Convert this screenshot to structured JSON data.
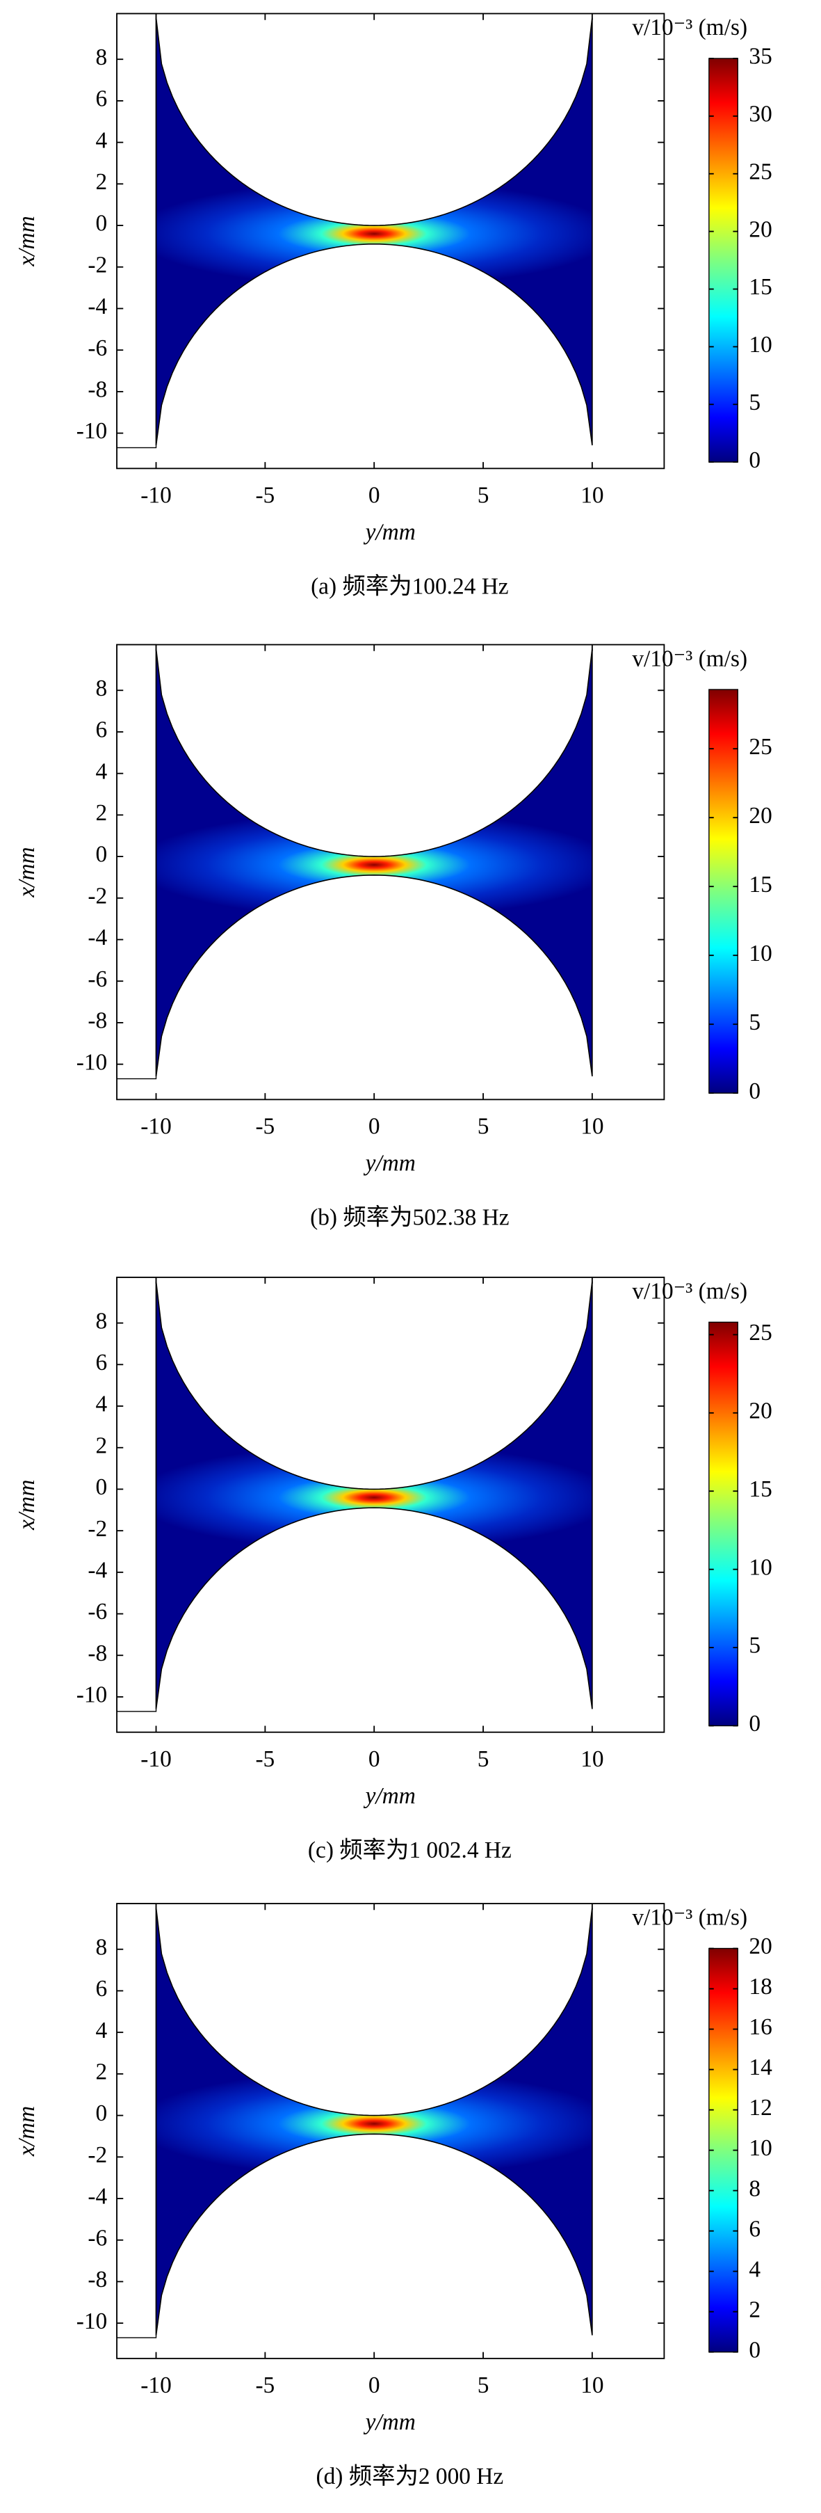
{
  "chart_data": [
    {
      "type": "heatmap",
      "caption": "(a) 频率为100.24 Hz",
      "x_label": "y/mm",
      "y_label": "x/mm",
      "xlim": [
        -11.8,
        13.3
      ],
      "xticks": [
        -10,
        -5,
        0,
        5,
        10
      ],
      "ylim": [
        -11.7,
        10.2
      ],
      "yticks": [
        -10,
        -8,
        -6,
        -4,
        -2,
        0,
        2,
        4,
        6,
        8
      ],
      "colorbar": {
        "label": "v/10⁻³ (m/s)",
        "lim": [
          0,
          35
        ],
        "ticks": [
          0,
          5,
          10,
          15,
          20,
          25,
          30,
          35
        ]
      }
    },
    {
      "type": "heatmap",
      "caption": "(b) 频率为502.38 Hz",
      "x_label": "y/mm",
      "y_label": "x/mm",
      "xlim": [
        -11.8,
        13.3
      ],
      "xticks": [
        -10,
        -5,
        0,
        5,
        10
      ],
      "ylim": [
        -11.7,
        10.2
      ],
      "yticks": [
        -10,
        -8,
        -6,
        -4,
        -2,
        0,
        2,
        4,
        6,
        8
      ],
      "colorbar": {
        "label": "v/10⁻³ (m/s)",
        "lim": [
          0,
          29.3
        ],
        "ticks": [
          0,
          5,
          10,
          15,
          20,
          25
        ]
      }
    },
    {
      "type": "heatmap",
      "caption": "(c) 频率为1 002.4 Hz",
      "x_label": "y/mm",
      "y_label": "x/mm",
      "xlim": [
        -11.8,
        13.3
      ],
      "xticks": [
        -10,
        -5,
        0,
        5,
        10
      ],
      "ylim": [
        -11.7,
        10.2
      ],
      "yticks": [
        -10,
        -8,
        -6,
        -4,
        -2,
        0,
        2,
        4,
        6,
        8
      ],
      "colorbar": {
        "label": "v/10⁻³ (m/s)",
        "lim": [
          0,
          25.8
        ],
        "ticks": [
          0,
          5,
          10,
          15,
          20,
          25
        ]
      }
    },
    {
      "type": "heatmap",
      "caption": "(d) 频率为2 000 Hz",
      "x_label": "y/mm",
      "y_label": "x/mm",
      "xlim": [
        -11.8,
        13.3
      ],
      "xticks": [
        -10,
        -5,
        0,
        5,
        10
      ],
      "ylim": [
        -11.7,
        10.2
      ],
      "yticks": [
        -10,
        -8,
        -6,
        -4,
        -2,
        0,
        2,
        4,
        6,
        8
      ],
      "colorbar": {
        "label": "v/10⁻³ (m/s)",
        "lim": [
          0,
          20
        ],
        "ticks": [
          0,
          2,
          4,
          6,
          8,
          10,
          12,
          14,
          16,
          18,
          20
        ]
      }
    }
  ]
}
